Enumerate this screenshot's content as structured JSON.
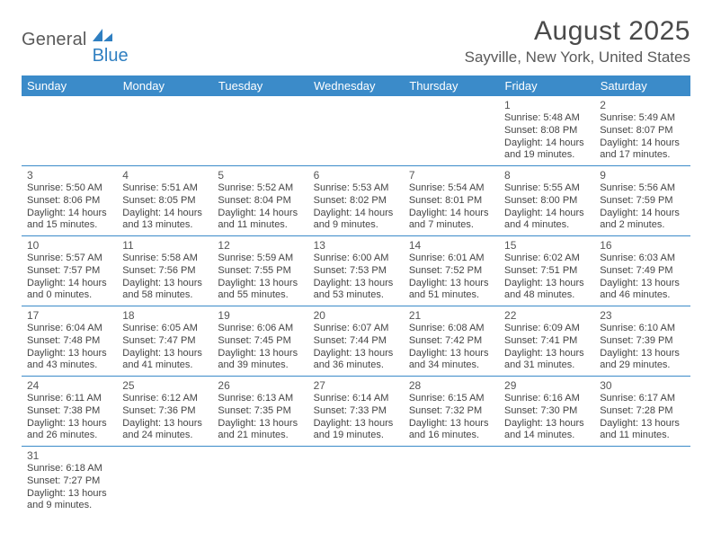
{
  "brand": {
    "text1": "General",
    "text2": "Blue",
    "text_color": "#5a5a5a",
    "accent_color": "#2f7fc1"
  },
  "title": "August 2025",
  "subtitle": "Sayville, New York, United States",
  "header_bg": "#3b8bc9",
  "header_fg": "#ffffff",
  "border_color": "#3b8bc9",
  "columns": [
    "Sunday",
    "Monday",
    "Tuesday",
    "Wednesday",
    "Thursday",
    "Friday",
    "Saturday"
  ],
  "weeks": [
    [
      null,
      null,
      null,
      null,
      null,
      {
        "d": "1",
        "sr": "5:48 AM",
        "ss": "8:08 PM",
        "dl": "14 hours and 19 minutes."
      },
      {
        "d": "2",
        "sr": "5:49 AM",
        "ss": "8:07 PM",
        "dl": "14 hours and 17 minutes."
      }
    ],
    [
      {
        "d": "3",
        "sr": "5:50 AM",
        "ss": "8:06 PM",
        "dl": "14 hours and 15 minutes."
      },
      {
        "d": "4",
        "sr": "5:51 AM",
        "ss": "8:05 PM",
        "dl": "14 hours and 13 minutes."
      },
      {
        "d": "5",
        "sr": "5:52 AM",
        "ss": "8:04 PM",
        "dl": "14 hours and 11 minutes."
      },
      {
        "d": "6",
        "sr": "5:53 AM",
        "ss": "8:02 PM",
        "dl": "14 hours and 9 minutes."
      },
      {
        "d": "7",
        "sr": "5:54 AM",
        "ss": "8:01 PM",
        "dl": "14 hours and 7 minutes."
      },
      {
        "d": "8",
        "sr": "5:55 AM",
        "ss": "8:00 PM",
        "dl": "14 hours and 4 minutes."
      },
      {
        "d": "9",
        "sr": "5:56 AM",
        "ss": "7:59 PM",
        "dl": "14 hours and 2 minutes."
      }
    ],
    [
      {
        "d": "10",
        "sr": "5:57 AM",
        "ss": "7:57 PM",
        "dl": "14 hours and 0 minutes."
      },
      {
        "d": "11",
        "sr": "5:58 AM",
        "ss": "7:56 PM",
        "dl": "13 hours and 58 minutes."
      },
      {
        "d": "12",
        "sr": "5:59 AM",
        "ss": "7:55 PM",
        "dl": "13 hours and 55 minutes."
      },
      {
        "d": "13",
        "sr": "6:00 AM",
        "ss": "7:53 PM",
        "dl": "13 hours and 53 minutes."
      },
      {
        "d": "14",
        "sr": "6:01 AM",
        "ss": "7:52 PM",
        "dl": "13 hours and 51 minutes."
      },
      {
        "d": "15",
        "sr": "6:02 AM",
        "ss": "7:51 PM",
        "dl": "13 hours and 48 minutes."
      },
      {
        "d": "16",
        "sr": "6:03 AM",
        "ss": "7:49 PM",
        "dl": "13 hours and 46 minutes."
      }
    ],
    [
      {
        "d": "17",
        "sr": "6:04 AM",
        "ss": "7:48 PM",
        "dl": "13 hours and 43 minutes."
      },
      {
        "d": "18",
        "sr": "6:05 AM",
        "ss": "7:47 PM",
        "dl": "13 hours and 41 minutes."
      },
      {
        "d": "19",
        "sr": "6:06 AM",
        "ss": "7:45 PM",
        "dl": "13 hours and 39 minutes."
      },
      {
        "d": "20",
        "sr": "6:07 AM",
        "ss": "7:44 PM",
        "dl": "13 hours and 36 minutes."
      },
      {
        "d": "21",
        "sr": "6:08 AM",
        "ss": "7:42 PM",
        "dl": "13 hours and 34 minutes."
      },
      {
        "d": "22",
        "sr": "6:09 AM",
        "ss": "7:41 PM",
        "dl": "13 hours and 31 minutes."
      },
      {
        "d": "23",
        "sr": "6:10 AM",
        "ss": "7:39 PM",
        "dl": "13 hours and 29 minutes."
      }
    ],
    [
      {
        "d": "24",
        "sr": "6:11 AM",
        "ss": "7:38 PM",
        "dl": "13 hours and 26 minutes."
      },
      {
        "d": "25",
        "sr": "6:12 AM",
        "ss": "7:36 PM",
        "dl": "13 hours and 24 minutes."
      },
      {
        "d": "26",
        "sr": "6:13 AM",
        "ss": "7:35 PM",
        "dl": "13 hours and 21 minutes."
      },
      {
        "d": "27",
        "sr": "6:14 AM",
        "ss": "7:33 PM",
        "dl": "13 hours and 19 minutes."
      },
      {
        "d": "28",
        "sr": "6:15 AM",
        "ss": "7:32 PM",
        "dl": "13 hours and 16 minutes."
      },
      {
        "d": "29",
        "sr": "6:16 AM",
        "ss": "7:30 PM",
        "dl": "13 hours and 14 minutes."
      },
      {
        "d": "30",
        "sr": "6:17 AM",
        "ss": "7:28 PM",
        "dl": "13 hours and 11 minutes."
      }
    ],
    [
      {
        "d": "31",
        "sr": "6:18 AM",
        "ss": "7:27 PM",
        "dl": "13 hours and 9 minutes."
      },
      null,
      null,
      null,
      null,
      null,
      null
    ]
  ],
  "labels": {
    "sunrise": "Sunrise: ",
    "sunset": "Sunset: ",
    "daylight": "Daylight: "
  }
}
